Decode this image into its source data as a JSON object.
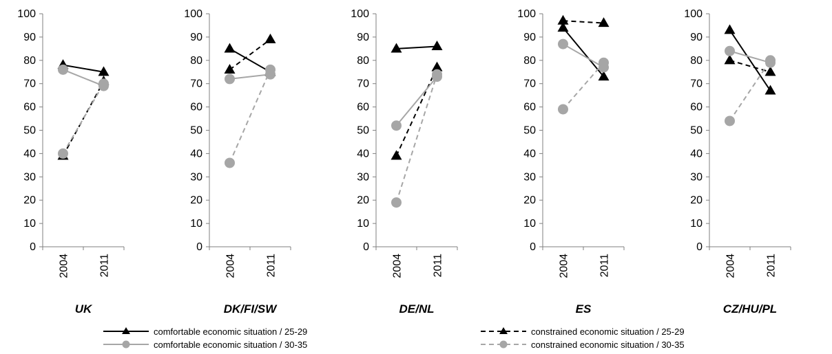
{
  "chart_data": {
    "type": "line",
    "x": [
      "2004",
      "2011"
    ],
    "ylim": [
      0,
      100
    ],
    "yticks": [
      0,
      10,
      20,
      30,
      40,
      50,
      60,
      70,
      80,
      90,
      100
    ],
    "grid": false,
    "legend_position": "bottom",
    "series_styles": [
      {
        "name": "comfortable economic situation / 25-29",
        "color": "#000000",
        "dash": "solid",
        "marker": "triangle"
      },
      {
        "name": "constrained economic situation / 25-29",
        "color": "#000000",
        "dash": "dashed",
        "marker": "triangle"
      },
      {
        "name": "comfortable economic situation / 30-35",
        "color": "#a6a6a6",
        "dash": "solid",
        "marker": "circle"
      },
      {
        "name": "constrained economic situation / 30-35",
        "color": "#a6a6a6",
        "dash": "dashed",
        "marker": "circle"
      }
    ],
    "panels": [
      {
        "title": "UK",
        "series": [
          {
            "name": "comfortable economic situation / 25-29",
            "values": [
              78,
              75
            ]
          },
          {
            "name": "constrained economic situation / 25-29",
            "values": [
              39,
              71
            ]
          },
          {
            "name": "comfortable economic situation / 30-35",
            "values": [
              76,
              69
            ]
          },
          {
            "name": "constrained economic situation / 30-35",
            "values": [
              40,
              70
            ]
          }
        ]
      },
      {
        "title": "DK/FI/SW",
        "series": [
          {
            "name": "comfortable economic situation / 25-29",
            "values": [
              85,
              75
            ]
          },
          {
            "name": "constrained economic situation / 25-29",
            "values": [
              76,
              89
            ]
          },
          {
            "name": "comfortable economic situation / 30-35",
            "values": [
              72,
              74
            ]
          },
          {
            "name": "constrained economic situation / 30-35",
            "values": [
              36,
              76
            ]
          }
        ]
      },
      {
        "title": "DE/NL",
        "series": [
          {
            "name": "comfortable economic situation / 25-29",
            "values": [
              85,
              86
            ]
          },
          {
            "name": "constrained economic situation / 25-29",
            "values": [
              39,
              77
            ]
          },
          {
            "name": "comfortable economic situation / 30-35",
            "values": [
              52,
              73
            ]
          },
          {
            "name": "constrained economic situation / 30-35",
            "values": [
              19,
              74
            ]
          }
        ]
      },
      {
        "title": "ES",
        "series": [
          {
            "name": "comfortable economic situation / 25-29",
            "values": [
              94,
              73
            ]
          },
          {
            "name": "constrained economic situation / 25-29",
            "values": [
              97,
              96
            ]
          },
          {
            "name": "comfortable economic situation / 30-35",
            "values": [
              87,
              77
            ]
          },
          {
            "name": "constrained economic situation / 30-35",
            "values": [
              59,
              79
            ]
          }
        ]
      },
      {
        "title": "CZ/HU/PL",
        "series": [
          {
            "name": "comfortable economic situation / 25-29",
            "values": [
              93,
              67
            ]
          },
          {
            "name": "constrained economic situation / 25-29",
            "values": [
              80,
              75
            ]
          },
          {
            "name": "comfortable economic situation / 30-35",
            "values": [
              84,
              79
            ]
          },
          {
            "name": "constrained economic situation / 30-35",
            "values": [
              54,
              80
            ]
          }
        ]
      }
    ]
  }
}
